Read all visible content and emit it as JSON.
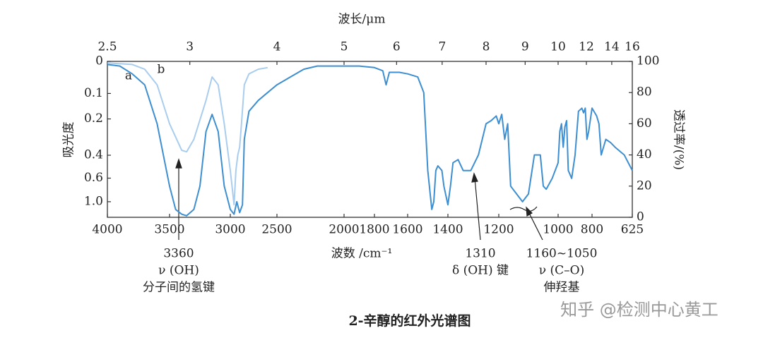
{
  "chart_data": {
    "type": "line",
    "title": "2-辛醇的红外光谱图",
    "x_label": "波数 /cm⁻¹",
    "x2_label": "波长/μm",
    "y_label": "吸光度",
    "y2_label": "透过率/(%)",
    "watermark": "知乎 @检测中心黄工",
    "xlim": [
      4000,
      625
    ],
    "xticks": [
      4000,
      3500,
      3000,
      2500,
      2000,
      1800,
      1600,
      1400,
      1200,
      1000,
      800,
      625
    ],
    "x2ticks": [
      2.5,
      3,
      4,
      5,
      6,
      7,
      8,
      9,
      10,
      12,
      14,
      16
    ],
    "yticks": [
      0,
      0.1,
      0.2,
      0.4,
      0.6,
      {
        "value": 1,
        "label": "1.0"
      }
    ],
    "y2lim": [
      0,
      100
    ],
    "y2ticks": [
      0,
      20,
      40,
      60,
      80,
      100
    ],
    "series": [
      {
        "name": "a",
        "color": "#3d8fd1",
        "axis": "y2",
        "x": [
          4000,
          3900,
          3800,
          3700,
          3600,
          3500,
          3450,
          3400,
          3360,
          3300,
          3250,
          3200,
          3150,
          3100,
          3050,
          3000,
          2960,
          2930,
          2900,
          2870,
          2850,
          2800,
          2700,
          2600,
          2500,
          2400,
          2300,
          2200,
          2100,
          2000,
          1900,
          1800,
          1750,
          1730,
          1710,
          1650,
          1600,
          1550,
          1520,
          1500,
          1480,
          1470,
          1460,
          1450,
          1430,
          1420,
          1400,
          1390,
          1380,
          1360,
          1340,
          1310,
          1280,
          1250,
          1230,
          1210,
          1200,
          1190,
          1180,
          1170,
          1160,
          1140,
          1120,
          1100,
          1080,
          1060,
          1050,
          1040,
          1020,
          1000,
          990,
          980,
          970,
          960,
          950,
          940,
          920,
          900,
          880,
          860,
          850,
          840,
          830,
          820,
          800,
          780,
          770,
          760,
          740,
          720,
          700,
          660,
          625
        ],
        "values": [
          98,
          97,
          92,
          85,
          60,
          20,
          5,
          2,
          1,
          5,
          20,
          55,
          66,
          55,
          20,
          5,
          2,
          10,
          3,
          8,
          50,
          68,
          75,
          80,
          85,
          90,
          95,
          97,
          97,
          97,
          97,
          96,
          94,
          85,
          93,
          93,
          92,
          90,
          80,
          30,
          5,
          10,
          30,
          33,
          30,
          20,
          8,
          20,
          35,
          37,
          30,
          30,
          40,
          60,
          62,
          65,
          60,
          66,
          50,
          60,
          20,
          15,
          10,
          15,
          40,
          40,
          20,
          18,
          25,
          35,
          55,
          60,
          45,
          58,
          62,
          30,
          25,
          40,
          68,
          70,
          67,
          70,
          50,
          55,
          70,
          65,
          60,
          40,
          50,
          48,
          45,
          40,
          30
        ]
      },
      {
        "name": "b",
        "color": "#a9cdef",
        "axis": "y2",
        "x": [
          4000,
          3800,
          3700,
          3600,
          3500,
          3400,
          3360,
          3300,
          3200,
          3150,
          3100,
          3050,
          3000,
          2960,
          2940,
          2920,
          2900,
          2880,
          2850,
          2800,
          2700,
          2600
        ],
        "values": [
          99,
          98,
          95,
          85,
          60,
          43,
          42,
          50,
          75,
          90,
          85,
          60,
          30,
          8,
          30,
          40,
          45,
          60,
          85,
          92,
          95,
          96
        ]
      }
    ],
    "annotations": [
      {
        "lines": [
          "3360",
          "ν (OH)",
          "分子间的氢键"
        ]
      },
      {
        "lines": [
          "1310",
          "δ (OH) 键"
        ]
      },
      {
        "lines": [
          "1160~1050",
          "ν (C–O)",
          "伸羟基"
        ]
      }
    ]
  }
}
